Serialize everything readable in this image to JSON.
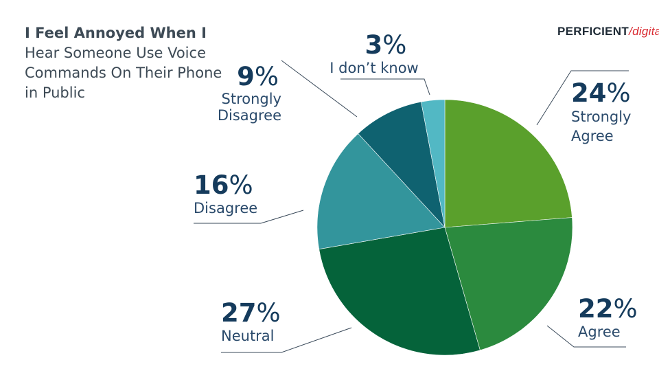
{
  "title": {
    "bold": "I Feel Annoyed When I",
    "rest": "Hear Someone Use Voice Commands On Their Phone in Public"
  },
  "logo": {
    "word": "PERFICIENT",
    "slash": "/",
    "suffix": "digital"
  },
  "chart_data": {
    "type": "pie",
    "title": "I Feel Annoyed When I Hear Someone Use Voice Commands On Their Phone in Public",
    "slices": [
      {
        "label": "Strongly Agree",
        "value": 24,
        "percent_text": "24",
        "color": "#5aa02c"
      },
      {
        "label": "Agree",
        "value": 22,
        "percent_text": "22",
        "color": "#2b8a3e"
      },
      {
        "label": "Neutral",
        "value": 27,
        "percent_text": "27",
        "color": "#05633a"
      },
      {
        "label": "Disagree",
        "value": 16,
        "percent_text": "16",
        "color": "#33959c"
      },
      {
        "label": "Strongly Disagree",
        "value": 9,
        "percent_text": "9",
        "color": "#0f6270"
      },
      {
        "label": "I don’t know",
        "value": 3,
        "percent_text": "3",
        "color": "#52b8c4"
      }
    ],
    "percent_symbol": "%",
    "start": "top",
    "direction": "clockwise"
  }
}
